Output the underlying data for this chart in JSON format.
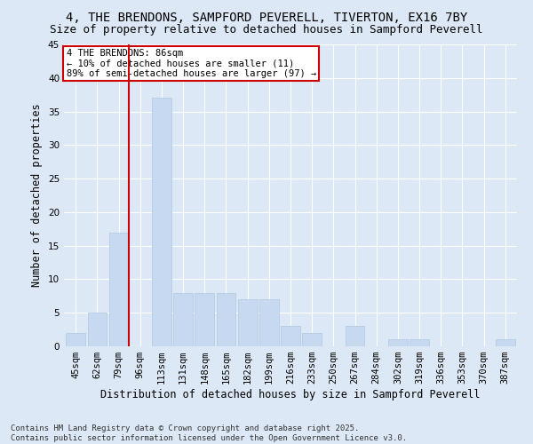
{
  "title1": "4, THE BRENDONS, SAMPFORD PEVERELL, TIVERTON, EX16 7BY",
  "title2": "Size of property relative to detached houses in Sampford Peverell",
  "xlabel": "Distribution of detached houses by size in Sampford Peverell",
  "ylabel": "Number of detached properties",
  "categories": [
    "45sqm",
    "62sqm",
    "79sqm",
    "96sqm",
    "113sqm",
    "131sqm",
    "148sqm",
    "165sqm",
    "182sqm",
    "199sqm",
    "216sqm",
    "233sqm",
    "250sqm",
    "267sqm",
    "284sqm",
    "302sqm",
    "319sqm",
    "336sqm",
    "353sqm",
    "370sqm",
    "387sqm"
  ],
  "values": [
    2,
    5,
    17,
    0,
    37,
    8,
    8,
    8,
    7,
    7,
    3,
    2,
    0,
    3,
    0,
    1,
    1,
    0,
    0,
    0,
    1
  ],
  "bar_color": "#c6d9f0",
  "bar_edge_color": "#aec8e0",
  "vline_color": "#cc0000",
  "vline_index": 2,
  "ylim": [
    0,
    45
  ],
  "yticks": [
    0,
    5,
    10,
    15,
    20,
    25,
    30,
    35,
    40,
    45
  ],
  "annotation_text": "4 THE BRENDONS: 86sqm\n← 10% of detached houses are smaller (11)\n89% of semi-detached houses are larger (97) →",
  "annotation_box_facecolor": "#ffffff",
  "annotation_box_edgecolor": "#cc0000",
  "footnote": "Contains HM Land Registry data © Crown copyright and database right 2025.\nContains public sector information licensed under the Open Government Licence v3.0.",
  "bg_color": "#dce8f5",
  "title1_fontsize": 10,
  "title2_fontsize": 9,
  "tick_fontsize": 7.5,
  "ylabel_fontsize": 8.5,
  "xlabel_fontsize": 8.5,
  "footnote_fontsize": 6.5,
  "annot_fontsize": 7.5
}
